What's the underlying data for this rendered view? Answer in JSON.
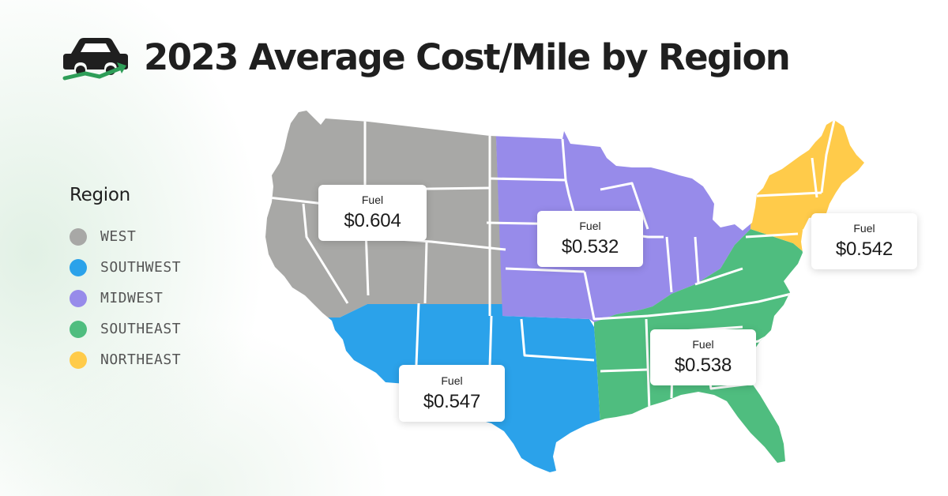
{
  "title": "2023 Average Cost/Mile by Region",
  "logo": {
    "icon": "car-icon",
    "accent": "#2e9e58"
  },
  "legend": {
    "title": "Region",
    "items": [
      {
        "label": "WEST",
        "color": "#a8a8a6"
      },
      {
        "label": "SOUTHWEST",
        "color": "#2ba2ea"
      },
      {
        "label": "MIDWEST",
        "color": "#978bea"
      },
      {
        "label": "SOUTHEAST",
        "color": "#4fbd7f"
      },
      {
        "label": "NORTHEAST",
        "color": "#ffcb4a"
      }
    ]
  },
  "callouts": {
    "west": {
      "label": "Fuel",
      "value": "$0.604"
    },
    "southwest": {
      "label": "Fuel",
      "value": "$0.547"
    },
    "midwest": {
      "label": "Fuel",
      "value": "$0.532"
    },
    "southeast": {
      "label": "Fuel",
      "value": "$0.538"
    },
    "northeast": {
      "label": "Fuel",
      "value": "$0.542"
    }
  }
}
